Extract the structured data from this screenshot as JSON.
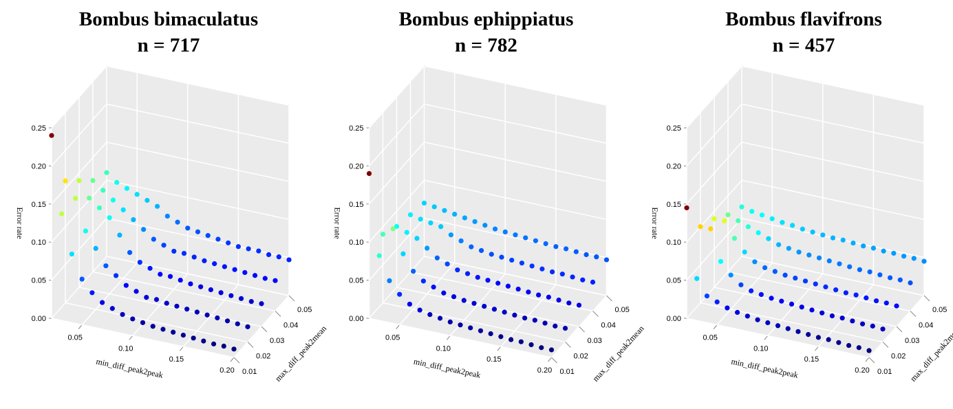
{
  "chart_data": [
    {
      "type": "scatter3d",
      "title": "Bombus bimaculatus",
      "subtitle": "n = 717",
      "xlabel": "min_diff_peak2peak",
      "ylabel": "max_diff_peak2mean",
      "zlabel": "Error rate",
      "xlim": [
        0.02,
        0.2
      ],
      "ylim": [
        0.01,
        0.05
      ],
      "zlim": [
        0,
        0.25
      ],
      "xticks": [
        0.05,
        {
          "value": 0.1,
          "label": "0.10"
        },
        0.15,
        {
          "value": 0.2,
          "label": "0.20"
        }
      ],
      "yticks": [
        0.01,
        0.02,
        0.03,
        0.04,
        0.05
      ],
      "zticks": [
        {
          "value": 0,
          "label": "0.00"
        },
        0.05,
        {
          "value": 0.1,
          "label": "0.10"
        },
        0.15,
        {
          "value": 0.2,
          "label": "0.20"
        },
        0.25
      ],
      "colormap": [
        "#00007f",
        "#0000ff",
        "#007fff",
        "#00ffff",
        "#7fff7f",
        "#ffff00",
        "#ff7f00",
        "#ff0000",
        "#7f0000"
      ],
      "x": [
        0.02,
        0.03,
        0.04,
        0.05,
        0.06,
        0.07,
        0.08,
        0.09,
        0.1,
        0.11,
        0.12,
        0.13,
        0.14,
        0.15,
        0.16,
        0.17,
        0.18,
        0.19,
        0.2
      ],
      "series": [
        {
          "y": 0.01,
          "values": [
            0.24,
            0.14,
            0.09,
            0.06,
            0.045,
            0.035,
            0.03,
            0.025,
            0.022,
            0.02,
            0.018,
            0.017,
            0.016,
            0.015,
            0.014,
            0.013,
            0.012,
            0.012,
            0.011
          ]
        },
        {
          "y": 0.02,
          "values": [
            0.16,
            0.14,
            0.1,
            0.08,
            0.06,
            0.05,
            0.04,
            0.035,
            0.03,
            0.03,
            0.028,
            0.027,
            0.026,
            0.025,
            0.024,
            0.023,
            0.022,
            0.021,
            0.02
          ]
        },
        {
          "y": 0.03,
          "values": [
            0.14,
            0.12,
            0.11,
            0.1,
            0.08,
            0.06,
            0.05,
            0.045,
            0.04,
            0.04,
            0.038,
            0.036,
            0.035,
            0.034,
            0.033,
            0.032,
            0.031,
            0.03,
            0.03
          ]
        },
        {
          "y": 0.04,
          "values": [
            0.12,
            0.11,
            0.1,
            0.09,
            0.08,
            0.07,
            0.06,
            0.055,
            0.05,
            0.05,
            0.048,
            0.046,
            0.045,
            0.044,
            0.043,
            0.042,
            0.041,
            0.04,
            0.04
          ]
        },
        {
          "y": 0.05,
          "values": [
            0.11,
            0.1,
            0.095,
            0.09,
            0.085,
            0.08,
            0.07,
            0.065,
            0.06,
            0.058,
            0.056,
            0.054,
            0.052,
            0.05,
            0.05,
            0.05,
            0.048,
            0.048,
            0.047
          ]
        }
      ]
    },
    {
      "type": "scatter3d",
      "title": "Bombus ephippiatus",
      "subtitle": "n = 782",
      "xlabel": "min_diff_peak2peak",
      "ylabel": "max_diff_peak2mean",
      "zlabel": "Error rate",
      "xlim": [
        0.02,
        0.2
      ],
      "ylim": [
        0.01,
        0.05
      ],
      "zlim": [
        0,
        0.25
      ],
      "xticks": [
        0.05,
        {
          "value": 0.1,
          "label": "0.10"
        },
        0.15,
        {
          "value": 0.2,
          "label": "0.20"
        }
      ],
      "yticks": [
        0.01,
        0.02,
        0.03,
        0.04,
        0.05
      ],
      "zticks": [
        {
          "value": 0,
          "label": "0.00"
        },
        0.05,
        {
          "value": 0.1,
          "label": "0.10"
        },
        0.15,
        {
          "value": 0.2,
          "label": "0.20"
        },
        0.25
      ],
      "colormap": [
        "#00007f",
        "#0000ff",
        "#007fff",
        "#00ffff",
        "#7fff7f",
        "#ffff00",
        "#ff7f00",
        "#ff0000",
        "#7f0000"
      ],
      "x": [
        0.02,
        0.03,
        0.04,
        0.05,
        0.06,
        0.07,
        0.08,
        0.09,
        0.1,
        0.11,
        0.12,
        0.13,
        0.14,
        0.15,
        0.16,
        0.17,
        0.18,
        0.19,
        0.2
      ],
      "series": [
        {
          "y": 0.01,
          "values": [
            0.19,
            0.085,
            0.055,
            0.04,
            0.03,
            0.025,
            0.022,
            0.02,
            0.018,
            0.017,
            0.016,
            0.015,
            0.014,
            0.013,
            0.012,
            0.012,
            0.011,
            0.01,
            0.01
          ]
        },
        {
          "y": 0.02,
          "values": [
            0.09,
            0.1,
            0.07,
            0.05,
            0.04,
            0.035,
            0.03,
            0.028,
            0.026,
            0.025,
            0.024,
            0.023,
            0.022,
            0.021,
            0.02,
            0.02,
            0.019,
            0.018,
            0.018
          ]
        },
        {
          "y": 0.03,
          "values": [
            0.08,
            0.075,
            0.07,
            0.06,
            0.05,
            0.045,
            0.04,
            0.038,
            0.036,
            0.035,
            0.034,
            0.033,
            0.032,
            0.031,
            0.03,
            0.03,
            0.029,
            0.028,
            0.028
          ]
        },
        {
          "y": 0.04,
          "values": [
            0.075,
            0.072,
            0.07,
            0.068,
            0.06,
            0.055,
            0.05,
            0.048,
            0.046,
            0.045,
            0.044,
            0.043,
            0.042,
            0.041,
            0.04,
            0.04,
            0.039,
            0.038,
            0.038
          ]
        },
        {
          "y": 0.05,
          "values": [
            0.07,
            0.068,
            0.066,
            0.064,
            0.062,
            0.06,
            0.058,
            0.056,
            0.055,
            0.054,
            0.053,
            0.052,
            0.051,
            0.05,
            0.05,
            0.049,
            0.048,
            0.048,
            0.047
          ]
        }
      ]
    },
    {
      "type": "scatter3d",
      "title": "Bombus flavifrons",
      "subtitle": "n = 457",
      "xlabel": "min_diff_peak2peak",
      "ylabel": "max_diff_peak2mean",
      "zlabel": "Error rate",
      "xlim": [
        0.02,
        0.2
      ],
      "ylim": [
        0.01,
        0.05
      ],
      "zlim": [
        0,
        0.25
      ],
      "xticks": [
        0.05,
        {
          "value": 0.1,
          "label": "0.10"
        },
        0.15,
        {
          "value": 0.2,
          "label": "0.20"
        }
      ],
      "yticks": [
        0.01,
        0.02,
        0.03,
        0.04,
        0.05
      ],
      "zticks": [
        {
          "value": 0,
          "label": "0.00"
        },
        0.05,
        {
          "value": 0.1,
          "label": "0.10"
        },
        0.15,
        {
          "value": 0.2,
          "label": "0.20"
        },
        0.25
      ],
      "colormap": [
        "#00007f",
        "#0000ff",
        "#007fff",
        "#00ffff",
        "#7fff7f",
        "#ffff00",
        "#ff7f00",
        "#ff0000",
        "#7f0000"
      ],
      "x": [
        0.02,
        0.03,
        0.04,
        0.05,
        0.06,
        0.07,
        0.08,
        0.09,
        0.1,
        0.11,
        0.12,
        0.13,
        0.14,
        0.15,
        0.16,
        0.17,
        0.18,
        0.19,
        0.2
      ],
      "series": [
        {
          "y": 0.01,
          "values": [
            0.145,
            0.055,
            0.035,
            0.03,
            0.025,
            0.022,
            0.02,
            0.018,
            0.017,
            0.016,
            0.015,
            0.014,
            0.013,
            0.012,
            0.012,
            0.011,
            0.01,
            0.01,
            0.009
          ]
        },
        {
          "y": 0.02,
          "values": [
            0.1,
            0.1,
            0.06,
            0.045,
            0.035,
            0.03,
            0.028,
            0.026,
            0.025,
            0.024,
            0.023,
            0.022,
            0.021,
            0.02,
            0.02,
            0.019,
            0.018,
            0.018,
            0.017
          ]
        },
        {
          "y": 0.03,
          "values": [
            0.09,
            0.09,
            0.07,
            0.055,
            0.045,
            0.04,
            0.038,
            0.036,
            0.035,
            0.034,
            0.033,
            0.032,
            0.031,
            0.03,
            0.03,
            0.029,
            0.028,
            0.028,
            0.027
          ]
        },
        {
          "y": 0.04,
          "values": [
            0.075,
            0.07,
            0.065,
            0.06,
            0.055,
            0.05,
            0.048,
            0.046,
            0.045,
            0.044,
            0.043,
            0.042,
            0.041,
            0.04,
            0.04,
            0.039,
            0.038,
            0.038,
            0.037
          ]
        },
        {
          "y": 0.05,
          "values": [
            0.065,
            0.062,
            0.06,
            0.058,
            0.056,
            0.055,
            0.053,
            0.052,
            0.051,
            0.05,
            0.05,
            0.049,
            0.048,
            0.048,
            0.047,
            0.047,
            0.046,
            0.046,
            0.045
          ]
        }
      ]
    }
  ]
}
